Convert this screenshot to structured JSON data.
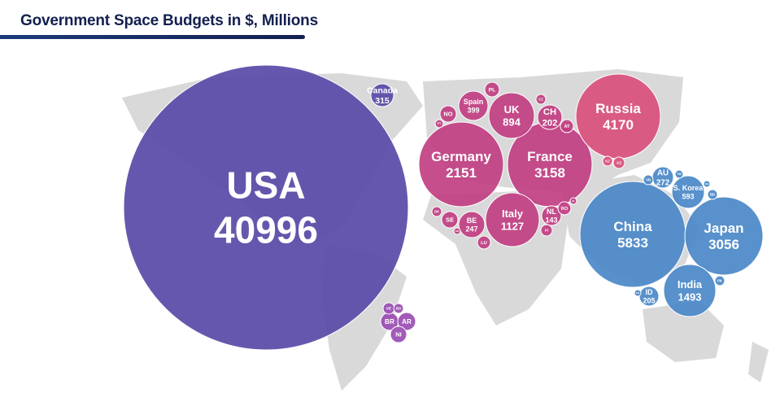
{
  "title": "Government Space Budgets in $, Millions",
  "colors": {
    "north_america": "#5a4aa8",
    "europe": "#c13f82",
    "russia_region": "#d9507c",
    "asia": "#4a88c8",
    "south_america": "#9a4db3",
    "map": "#d9d9d9",
    "title": "#13204f"
  },
  "chart_data": {
    "type": "bubble",
    "title": "Government Space Budgets in $, Millions",
    "background": "world map",
    "bubbles": [
      {
        "label": "USA",
        "value": 40996,
        "group": "north_america"
      },
      {
        "label": "Canada",
        "value": 315,
        "group": "north_america"
      },
      {
        "label": "Germany",
        "value": 2151,
        "group": "europe"
      },
      {
        "label": "France",
        "value": 3158,
        "group": "europe"
      },
      {
        "label": "Italy",
        "value": 1127,
        "group": "europe"
      },
      {
        "label": "UK",
        "value": 894,
        "group": "europe"
      },
      {
        "label": "Spain",
        "value": 399,
        "group": "europe"
      },
      {
        "label": "BE",
        "value": 247,
        "group": "europe"
      },
      {
        "label": "CH",
        "value": 202,
        "group": "europe"
      },
      {
        "label": "NL",
        "value": 143,
        "group": "europe"
      },
      {
        "label": "PL",
        "value": null,
        "group": "europe"
      },
      {
        "label": "NO",
        "value": null,
        "group": "europe"
      },
      {
        "label": "PT",
        "value": null,
        "group": "europe"
      },
      {
        "label": "CZ",
        "value": null,
        "group": "europe"
      },
      {
        "label": "AT",
        "value": null,
        "group": "europe"
      },
      {
        "label": "DK",
        "value": null,
        "group": "europe"
      },
      {
        "label": "SE",
        "value": null,
        "group": "europe"
      },
      {
        "label": "GR",
        "value": null,
        "group": "europe"
      },
      {
        "label": "LU",
        "value": null,
        "group": "europe"
      },
      {
        "label": "RO",
        "value": null,
        "group": "europe"
      },
      {
        "label": "IE",
        "value": null,
        "group": "europe"
      },
      {
        "label": "FI",
        "value": null,
        "group": "europe"
      },
      {
        "label": "Russia",
        "value": 4170,
        "group": "russia_region"
      },
      {
        "label": "KZ",
        "value": null,
        "group": "russia_region"
      },
      {
        "label": "AZ",
        "value": null,
        "group": "russia_region"
      },
      {
        "label": "China",
        "value": 5833,
        "group": "asia"
      },
      {
        "label": "Japan",
        "value": 3056,
        "group": "asia"
      },
      {
        "label": "India",
        "value": 1493,
        "group": "asia"
      },
      {
        "label": "S. Korea",
        "value": 593,
        "group": "asia"
      },
      {
        "label": "AU",
        "value": 272,
        "group": "asia"
      },
      {
        "label": "ID",
        "value": 205,
        "group": "asia"
      },
      {
        "label": "TW",
        "value": null,
        "group": "asia"
      },
      {
        "label": "VN",
        "value": null,
        "group": "asia"
      },
      {
        "label": "SG",
        "value": null,
        "group": "asia"
      },
      {
        "label": "BD",
        "value": null,
        "group": "asia"
      },
      {
        "label": "PH",
        "value": null,
        "group": "asia"
      },
      {
        "label": "PK",
        "value": null,
        "group": "asia"
      },
      {
        "label": "BR",
        "value": null,
        "group": "south_america"
      },
      {
        "label": "AR",
        "value": null,
        "group": "south_america"
      },
      {
        "label": "NI",
        "value": null,
        "group": "south_america"
      },
      {
        "label": "VE",
        "value": null,
        "group": "south_america"
      },
      {
        "label": "BO",
        "value": null,
        "group": "south_america"
      }
    ]
  }
}
